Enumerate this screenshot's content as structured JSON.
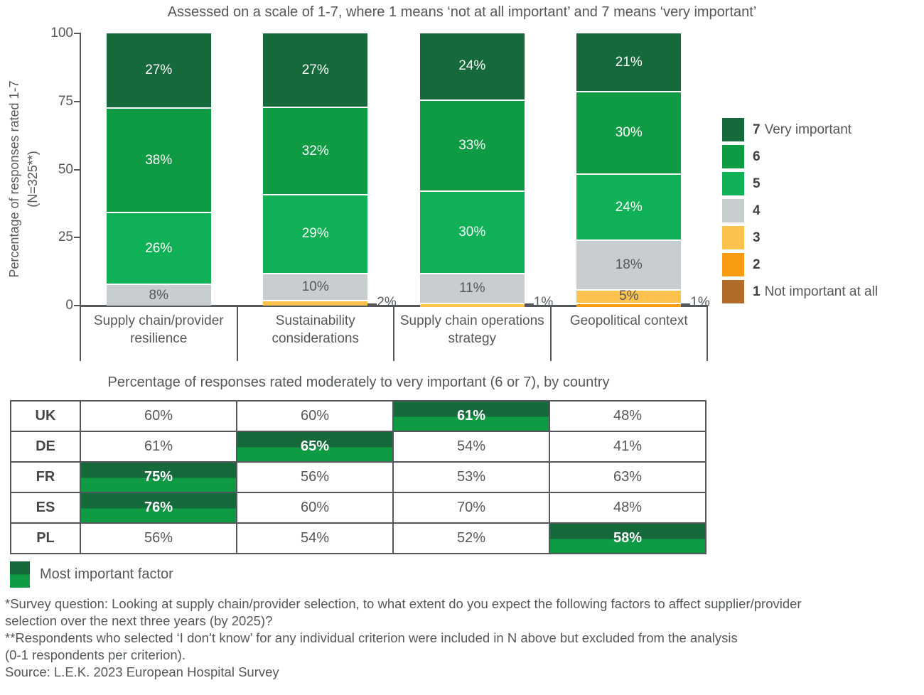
{
  "page": {
    "chart_title": "Assessed on a scale of 1-7, where 1 means ‘not at all important’ and 7 means ‘very important’",
    "y_axis_label_line1": "Percentage of responses rated 1-7",
    "y_axis_label_line2": "(N=325**)",
    "table_title": "Percentage of responses rated moderately to very important (6 or 7), by country",
    "footer_legend_label": "Most important factor",
    "footnotes": [
      "*Survey question: Looking at supply chain/provider selection, to what extent do you expect the following factors to affect supplier/provider",
      "selection over the next three years (by 2025)?",
      "**Respondents who selected ‘I don’t know’ for any individual criterion were included in N above but excluded from the analysis",
      "(0-1 respondents per criterion).",
      "Source: L.E.K. 2023 European Hospital Survey"
    ]
  },
  "colors": {
    "rating7": "#15693B",
    "rating6": "#0F9B44",
    "rating5": "#10B156",
    "rating4": "#C8CDCF",
    "rating3": "#FBC34D",
    "rating2": "#F99C10",
    "rating1": "#B26B28",
    "text_gray": "#54585A",
    "highlight_top": "#15693B",
    "highlight_bottom": "#0F9B44"
  },
  "chart_data": [
    {
      "type": "bar",
      "stacked": true,
      "title": "Assessed on a scale of 1-7, where 1 means ‘not at all important’ and 7 means ‘very important’",
      "ylabel": "Percentage of responses rated 1-7 (N=325**)",
      "ylim": [
        0,
        100
      ],
      "yticks": [
        100,
        75,
        50,
        25,
        0
      ],
      "grid": false,
      "legend_position": "right",
      "categories": [
        "Supply chain/provider resilience",
        "Sustainability considerations",
        "Supply chain operations strategy",
        "Geopolitical context"
      ],
      "series": [
        {
          "rating": "7",
          "name": "7 Very important",
          "color": "#15693B",
          "values": [
            27,
            27,
            24,
            21
          ]
        },
        {
          "rating": "6",
          "name": "6",
          "color": "#0F9B44",
          "values": [
            38,
            32,
            33,
            30
          ]
        },
        {
          "rating": "5",
          "name": "5",
          "color": "#10B156",
          "values": [
            26,
            29,
            30,
            24
          ]
        },
        {
          "rating": "4",
          "name": "4",
          "color": "#C8CDCF",
          "values": [
            8,
            10,
            11,
            18
          ]
        },
        {
          "rating": "3",
          "name": "3",
          "color": "#FBC34D",
          "values": [
            0,
            2,
            1,
            5
          ]
        },
        {
          "rating": "2",
          "name": "2",
          "color": "#F99C10",
          "values": [
            0,
            0,
            0,
            1
          ]
        },
        {
          "rating": "1",
          "name": "1 Not important at all",
          "color": "#B26B28",
          "values": [
            0,
            0,
            0,
            0
          ]
        }
      ],
      "legend": [
        {
          "num": "7",
          "text": "Very important",
          "color": "#15693B"
        },
        {
          "num": "6",
          "text": "",
          "color": "#0F9B44"
        },
        {
          "num": "5",
          "text": "",
          "color": "#10B156"
        },
        {
          "num": "4",
          "text": "",
          "color": "#C8CDCF"
        },
        {
          "num": "3",
          "text": "",
          "color": "#FBC34D"
        },
        {
          "num": "2",
          "text": "",
          "color": "#F99C10"
        },
        {
          "num": "1",
          "text": "Not important at all",
          "color": "#B26B28"
        }
      ]
    },
    {
      "type": "table",
      "title": "Percentage of responses rated moderately to very important (6 or 7), by country",
      "columns": [
        "Supply chain/provider resilience",
        "Sustainability considerations",
        "Supply chain operations strategy",
        "Geopolitical context"
      ],
      "rows": [
        {
          "country": "UK",
          "values": [
            "60%",
            "60%",
            "61%",
            "48%"
          ],
          "highlight_col": 2
        },
        {
          "country": "DE",
          "values": [
            "61%",
            "65%",
            "54%",
            "41%"
          ],
          "highlight_col": 1
        },
        {
          "country": "FR",
          "values": [
            "75%",
            "56%",
            "53%",
            "63%"
          ],
          "highlight_col": 0
        },
        {
          "country": "ES",
          "values": [
            "76%",
            "60%",
            "70%",
            "48%"
          ],
          "highlight_col": 0
        },
        {
          "country": "PL",
          "values": [
            "56%",
            "54%",
            "52%",
            "58%"
          ],
          "highlight_col": 3
        }
      ],
      "highlight_legend": "Most important factor"
    }
  ]
}
